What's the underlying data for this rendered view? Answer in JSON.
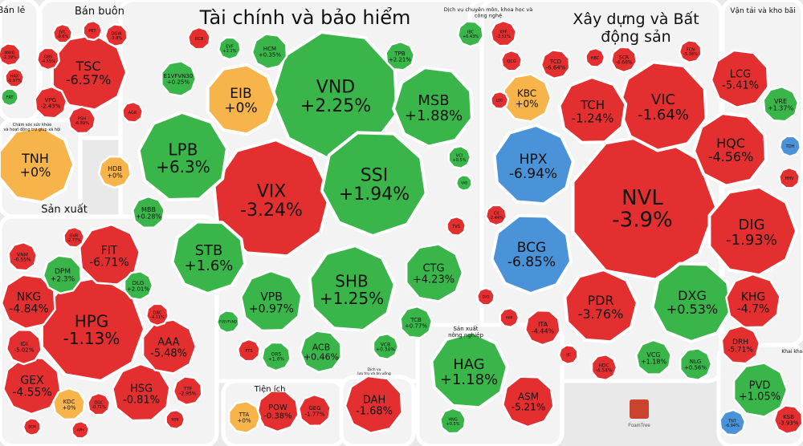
{
  "chart_data": {
    "type": "treemap",
    "title": "",
    "colors": {
      "up": "#39b54a",
      "down": "#e32f2f",
      "flat": "#f6b44a",
      "floor": "#4b93d9"
    },
    "logo_text": "FoamTree",
    "sectors": [
      {
        "name": "Bán lẻ"
      },
      {
        "name": "Bán buôn"
      },
      {
        "name": "Tài chính và bảo hiểm"
      },
      {
        "name": "Dịch vụ chuyên môn, khoa học và công nghệ"
      },
      {
        "name": "Xây dựng và Bất động sản"
      },
      {
        "name": "Vận tải và kho bãi"
      },
      {
        "name": "Chăm sóc sức khỏe và hoạt động trợ giúp xã hội"
      },
      {
        "name": "Sản xuất"
      },
      {
        "name": "Tiện ích"
      },
      {
        "name": "Dịch vụ lưu trú và ăn uống"
      },
      {
        "name": "Sản xuất nông nghiệp"
      },
      {
        "name": "Khai khoáng"
      }
    ],
    "stocks": [
      {
        "ticker": "TSC",
        "change": "-6.57%",
        "status": "down"
      },
      {
        "ticker": "MWG",
        "change": "-2.39%",
        "status": "down"
      },
      {
        "ticker": "HAX",
        "change": "-0.97%",
        "status": "down"
      },
      {
        "ticker": "FRT",
        "change": "",
        "status": "up"
      },
      {
        "ticker": "JVC",
        "change": "-0.6%",
        "status": "down"
      },
      {
        "ticker": "PET",
        "change": "",
        "status": "down"
      },
      {
        "ticker": "DGW",
        "change": "-3.8%",
        "status": "down"
      },
      {
        "ticker": "VPG",
        "change": "-2.43%",
        "status": "down"
      },
      {
        "ticker": "QBS",
        "change": "-4.55%",
        "status": "down"
      },
      {
        "ticker": "PSH",
        "change": "-6.89%",
        "status": "down"
      },
      {
        "ticker": "TNH",
        "change": "+0%",
        "status": "flat"
      },
      {
        "ticker": "VND",
        "change": "+2.25%",
        "status": "up"
      },
      {
        "ticker": "VIX",
        "change": "-3.24%",
        "status": "down"
      },
      {
        "ticker": "SSI",
        "change": "+1.94%",
        "status": "up"
      },
      {
        "ticker": "LPB",
        "change": "+6.3%",
        "status": "up"
      },
      {
        "ticker": "EIB",
        "change": "+0%",
        "status": "flat"
      },
      {
        "ticker": "MSB",
        "change": "+1.88%",
        "status": "up"
      },
      {
        "ticker": "SHB",
        "change": "+1.25%",
        "status": "up"
      },
      {
        "ticker": "STB",
        "change": "+1.6%",
        "status": "up"
      },
      {
        "ticker": "VPB",
        "change": "+0.97%",
        "status": "up"
      },
      {
        "ticker": "CTG",
        "change": "+4.23%",
        "status": "up"
      },
      {
        "ticker": "ACB",
        "change": "+0.46%",
        "status": "up"
      },
      {
        "ticker": "TCB",
        "change": "+0.77%",
        "status": "up"
      },
      {
        "ticker": "HDB",
        "change": "+0%",
        "status": "flat"
      },
      {
        "ticker": "MBB",
        "change": "+0.28%",
        "status": "up"
      },
      {
        "ticker": "E1VFVN30",
        "change": "+0.25%",
        "status": "up"
      },
      {
        "ticker": "HCM",
        "change": "+0.35%",
        "status": "up"
      },
      {
        "ticker": "TPB",
        "change": "+2.21%",
        "status": "up"
      },
      {
        "ticker": "EVF",
        "change": "+2.2%",
        "status": "up"
      },
      {
        "ticker": "OCB",
        "change": "",
        "status": "down"
      },
      {
        "ticker": "VCI",
        "change": "+0.5%",
        "status": "up"
      },
      {
        "ticker": "VAB",
        "change": "",
        "status": "up"
      },
      {
        "ticker": "TVS",
        "change": "",
        "status": "down"
      },
      {
        "ticker": "ORS",
        "change": "+1.6%",
        "status": "up"
      },
      {
        "ticker": "FTS",
        "change": "",
        "status": "down"
      },
      {
        "ticker": "VCB",
        "change": "+0.34%",
        "status": "up"
      },
      {
        "ticker": "FUEVFVND",
        "change": "",
        "status": "up"
      },
      {
        "ticker": "AGR",
        "change": "",
        "status": "down"
      },
      {
        "ticker": "IBC",
        "change": "+6.43%",
        "status": "up"
      },
      {
        "ticker": "KPF",
        "change": "-2.51%",
        "status": "down"
      },
      {
        "ticker": "NVL",
        "change": "-3.9%",
        "status": "down"
      },
      {
        "ticker": "VIC",
        "change": "-1.64%",
        "status": "down"
      },
      {
        "ticker": "HPX",
        "change": "-6.94%",
        "status": "floor"
      },
      {
        "ticker": "BCG",
        "change": "-6.85%",
        "status": "floor"
      },
      {
        "ticker": "TCH",
        "change": "-1.24%",
        "status": "down"
      },
      {
        "ticker": "DIG",
        "change": "-1.93%",
        "status": "down"
      },
      {
        "ticker": "HQC",
        "change": "-4.56%",
        "status": "down"
      },
      {
        "ticker": "PDR",
        "change": "-3.76%",
        "status": "down"
      },
      {
        "ticker": "DXG",
        "change": "+0.53%",
        "status": "up"
      },
      {
        "ticker": "KHG",
        "change": "-4.7%",
        "status": "down"
      },
      {
        "ticker": "KBC",
        "change": "+0%",
        "status": "flat"
      },
      {
        "ticker": "LCG",
        "change": "-5.41%",
        "status": "down"
      },
      {
        "ticker": "DRH",
        "change": "-5.71%",
        "status": "down"
      },
      {
        "ticker": "ITA",
        "change": "-4.44%",
        "status": "down"
      },
      {
        "ticker": "VCG",
        "change": "+1.18%",
        "status": "up"
      },
      {
        "ticker": "NLG",
        "change": "+0.56%",
        "status": "up"
      },
      {
        "ticker": "TCD",
        "change": "-6.64%",
        "status": "down"
      },
      {
        "ticker": "HBC",
        "change": "",
        "status": "down"
      },
      {
        "ticker": "SCR",
        "change": "-4.68%",
        "status": "down"
      },
      {
        "ticker": "QCG",
        "change": "",
        "status": "down"
      },
      {
        "ticker": "HDC",
        "change": "-4.54%",
        "status": "down"
      },
      {
        "ticker": "FCN",
        "change": "-5.38%",
        "status": "down"
      },
      {
        "ticker": "LDG",
        "change": "",
        "status": "down"
      },
      {
        "ticker": "CII",
        "change": "-2.44%",
        "status": "down"
      },
      {
        "ticker": "DXS",
        "change": "",
        "status": "down"
      },
      {
        "ticker": "HAR",
        "change": "",
        "status": "down"
      },
      {
        "ticker": "IJC",
        "change": "",
        "status": "down"
      },
      {
        "ticker": "VRE",
        "change": "+1.37%",
        "status": "up"
      },
      {
        "ticker": "TDH",
        "change": "",
        "status": "floor"
      },
      {
        "ticker": "HHV",
        "change": "",
        "status": "down"
      },
      {
        "ticker": "HPG",
        "change": "-1.13%",
        "status": "down"
      },
      {
        "ticker": "NKG",
        "change": "-4.84%",
        "status": "down"
      },
      {
        "ticker": "FIT",
        "change": "-6.71%",
        "status": "down"
      },
      {
        "ticker": "GEX",
        "change": "-4.55%",
        "status": "down"
      },
      {
        "ticker": "HSG",
        "change": "-0.81%",
        "status": "down"
      },
      {
        "ticker": "AAA",
        "change": "-5.48%",
        "status": "down"
      },
      {
        "ticker": "DPM",
        "change": "+2.3%",
        "status": "up"
      },
      {
        "ticker": "VNM",
        "change": "-0.55%",
        "status": "down"
      },
      {
        "ticker": "IDI",
        "change": "-5.02%",
        "status": "down"
      },
      {
        "ticker": "KDC",
        "change": "+0%",
        "status": "flat"
      },
      {
        "ticker": "DLG",
        "change": "+2.01%",
        "status": "up"
      },
      {
        "ticker": "TTF",
        "change": "-2.95%",
        "status": "down"
      },
      {
        "ticker": "GVR",
        "change": "-2.77%",
        "status": "down"
      },
      {
        "ticker": "DBC",
        "change": "-4.11%",
        "status": "down"
      },
      {
        "ticker": "DGC",
        "change": "-0.71%",
        "status": "down"
      },
      {
        "ticker": "MSN",
        "change": "",
        "status": "down"
      },
      {
        "ticker": "DCM",
        "change": "",
        "status": "down"
      },
      {
        "ticker": "APH",
        "change": "",
        "status": "down"
      },
      {
        "ticker": "POW",
        "change": "-0.38%",
        "status": "down"
      },
      {
        "ticker": "GEG",
        "change": "-1.77%",
        "status": "down"
      },
      {
        "ticker": "TTA",
        "change": "+0%",
        "status": "flat"
      },
      {
        "ticker": "DAH",
        "change": "-1.68%",
        "status": "down"
      },
      {
        "ticker": "HAG",
        "change": "+1.18%",
        "status": "up"
      },
      {
        "ticker": "ASM",
        "change": "-5.21%",
        "status": "down"
      },
      {
        "ticker": "HNG",
        "change": "+0.5%",
        "status": "up"
      },
      {
        "ticker": "PVD",
        "change": "+1.05%",
        "status": "up"
      },
      {
        "ticker": "KSB",
        "change": "-3.93%",
        "status": "down"
      },
      {
        "ticker": "TNT",
        "change": "-6.94%",
        "status": "floor"
      }
    ]
  }
}
